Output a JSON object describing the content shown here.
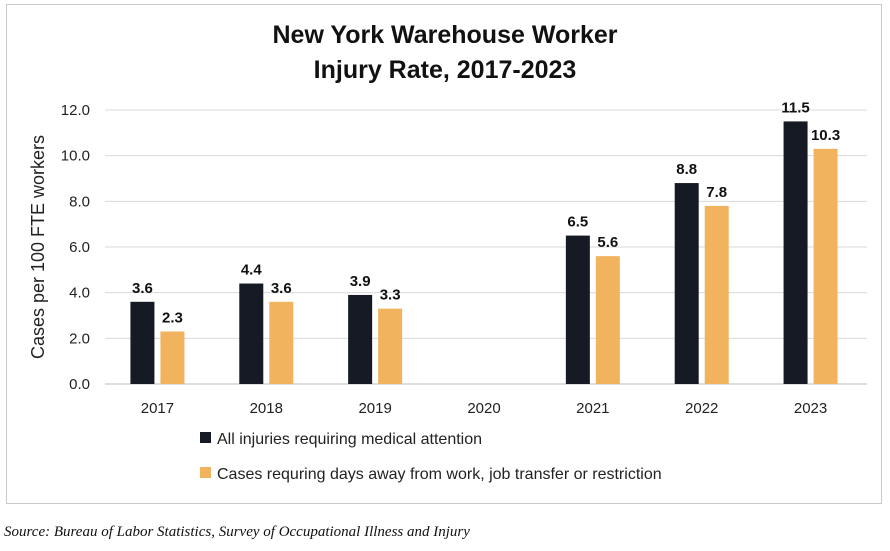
{
  "chart_data": {
    "type": "bar",
    "title_line1": "New York Warehouse Worker",
    "title_line2": "Injury Rate, 2017-2023",
    "ylabel": "Cases per 100 FTE workers",
    "xlabel": "",
    "ylim": [
      0,
      12
    ],
    "yticks": [
      "0.0",
      "2.0",
      "4.0",
      "6.0",
      "8.0",
      "10.0",
      "12.0"
    ],
    "categories": [
      "2017",
      "2018",
      "2019",
      "2020",
      "2021",
      "2022",
      "2023"
    ],
    "grid": "horizontal",
    "legend_position": "bottom",
    "series": [
      {
        "name": "All injuries requiring medical attention",
        "color": "#151a24",
        "values": [
          3.6,
          4.4,
          3.9,
          null,
          6.5,
          8.8,
          11.5
        ],
        "labels": [
          "3.6",
          "4.4",
          "3.9",
          "",
          "6.5",
          "8.8",
          "11.5"
        ]
      },
      {
        "name": "Cases requring days away from work, job transfer or restriction",
        "color": "#f2b35f",
        "values": [
          2.3,
          3.6,
          3.3,
          null,
          5.6,
          7.8,
          10.3
        ],
        "labels": [
          "2.3",
          "3.6",
          "3.3",
          "",
          "5.6",
          "7.8",
          "10.3"
        ]
      }
    ]
  },
  "source": "Source: Bureau of Labor Statistics, Survey of Occupational Illness and Injury"
}
